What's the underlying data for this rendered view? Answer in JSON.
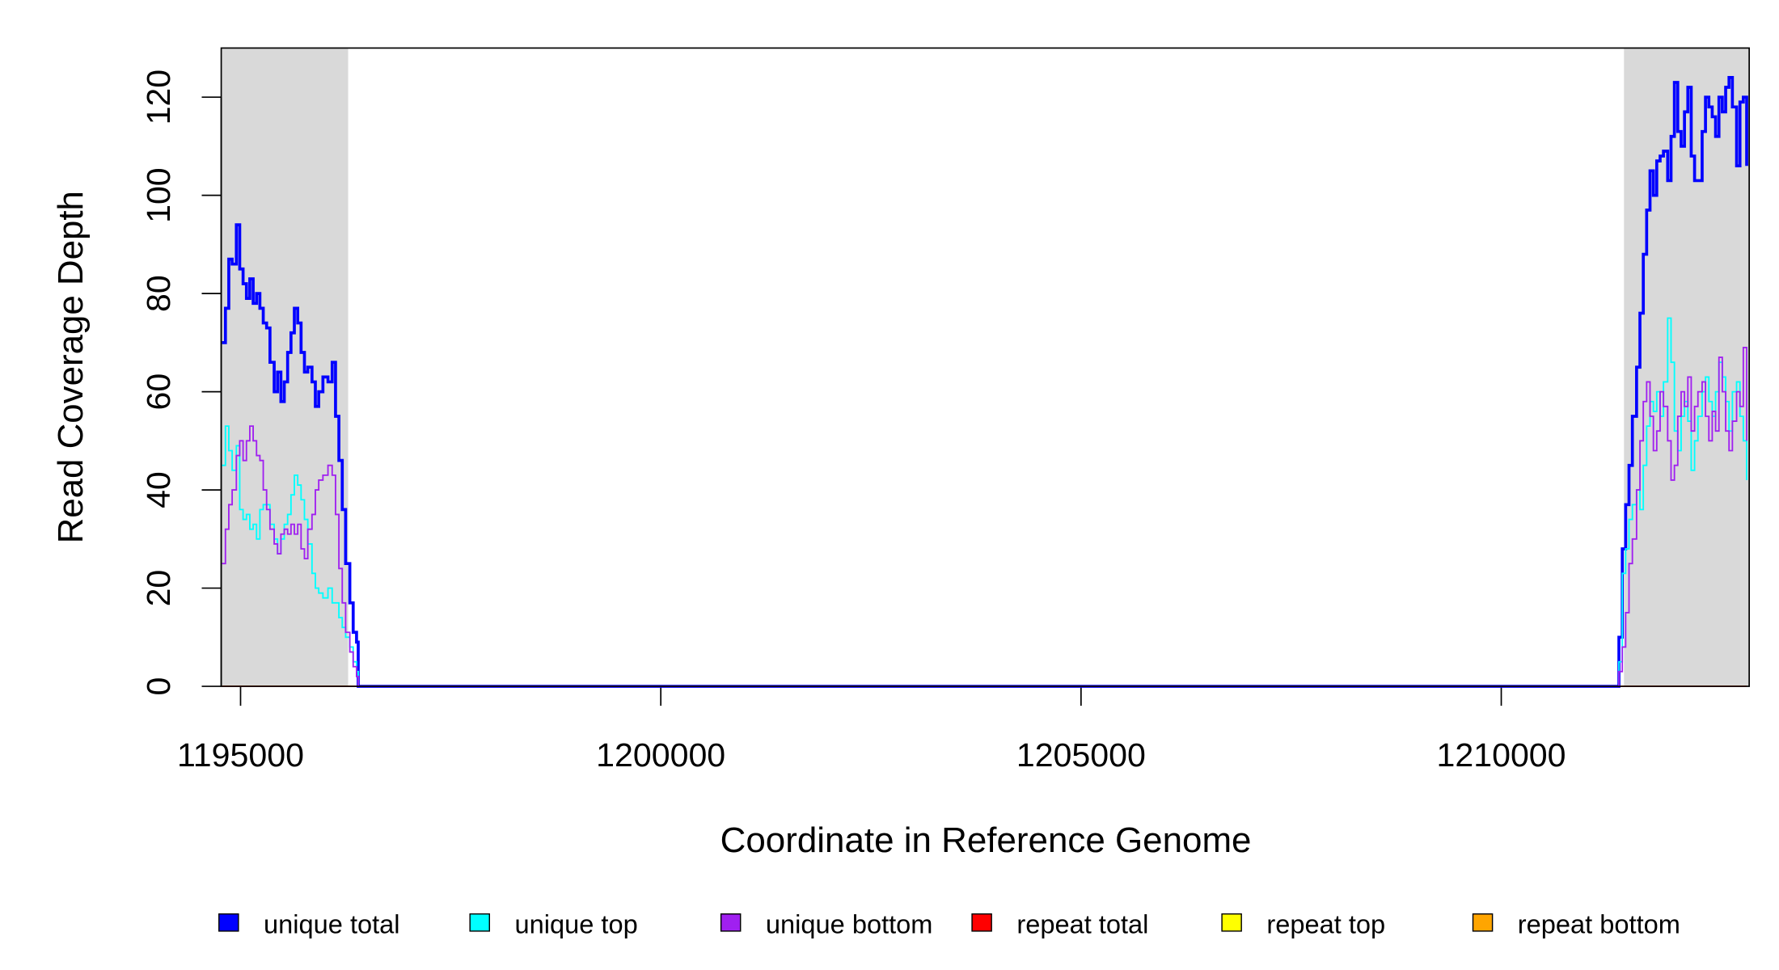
{
  "chart_data": {
    "type": "step",
    "x_label": "Coordinate in Reference Genome",
    "y_label": "Read Coverage Depth",
    "xlim": [
      1194770,
      1212950
    ],
    "ylim": [
      0,
      130
    ],
    "xticks": [
      1195000,
      1200000,
      1205000,
      1210000
    ],
    "yticks": [
      0,
      20,
      40,
      60,
      80,
      100,
      120
    ],
    "legend": "bottom",
    "shaded_regions": [
      [
        1194770,
        1196280
      ],
      [
        1211460,
        1212950
      ]
    ],
    "shade_color": "#d9d9d9",
    "x": [
      1194780,
      1194820,
      1194860,
      1194900,
      1194950,
      1194990,
      1195030,
      1195070,
      1195110,
      1195150,
      1195190,
      1195230,
      1195270,
      1195310,
      1195350,
      1195400,
      1195440,
      1195480,
      1195520,
      1195560,
      1195600,
      1195640,
      1195680,
      1195720,
      1195760,
      1195800,
      1195850,
      1195890,
      1195930,
      1195980,
      1196040,
      1196090,
      1196130,
      1196170,
      1196210,
      1196250,
      1196300,
      1196340,
      1196380,
      1196400,
      1211350,
      1211400,
      1211440,
      1211480,
      1211520,
      1211560,
      1211610,
      1211650,
      1211690,
      1211730,
      1211770,
      1211810,
      1211850,
      1211890,
      1211930,
      1211980,
      1212020,
      1212060,
      1212100,
      1212140,
      1212180,
      1212220,
      1212260,
      1212300,
      1212340,
      1212390,
      1212430,
      1212470,
      1212510,
      1212550,
      1212590,
      1212630,
      1212670,
      1212710,
      1212750,
      1212800,
      1212840,
      1212880,
      1212920
    ],
    "series": [
      {
        "name": "repeat bottom",
        "color": "#ffa500",
        "width": 1.2,
        "values": [
          0,
          0,
          0,
          0,
          0,
          0,
          0,
          0,
          0,
          0,
          0,
          0,
          0,
          0,
          0,
          0,
          0,
          0,
          0,
          0,
          0,
          0,
          0,
          0,
          0,
          0,
          0,
          0,
          0,
          0,
          0,
          0,
          0,
          0,
          0,
          0,
          0,
          0,
          0,
          0,
          0,
          0,
          0,
          0,
          0,
          0,
          0,
          0,
          0,
          0,
          0,
          0,
          0,
          0,
          0,
          0,
          0,
          0,
          0,
          0,
          0,
          0,
          0,
          0,
          0,
          0,
          0,
          0,
          0,
          0,
          0,
          0,
          0,
          0,
          0,
          0,
          0,
          0,
          0
        ]
      },
      {
        "name": "repeat top",
        "color": "#ffff00",
        "width": 1.2,
        "values": [
          0,
          0,
          0,
          0,
          0,
          0,
          0,
          0,
          0,
          0,
          0,
          0,
          0,
          0,
          0,
          0,
          0,
          0,
          0,
          0,
          0,
          0,
          0,
          0,
          0,
          0,
          0,
          0,
          0,
          0,
          0,
          0,
          0,
          0,
          0,
          0,
          0,
          0,
          0,
          0,
          0,
          0,
          0,
          0,
          0,
          0,
          0,
          0,
          0,
          0,
          0,
          0,
          0,
          0,
          0,
          0,
          0,
          0,
          0,
          0,
          0,
          0,
          0,
          0,
          0,
          0,
          0,
          0,
          0,
          0,
          0,
          0,
          0,
          0,
          0,
          0,
          0,
          0,
          0
        ]
      },
      {
        "name": "repeat total",
        "color": "#ff0000",
        "width": 1.2,
        "values": [
          0,
          0,
          0,
          0,
          0,
          0,
          0,
          0,
          0,
          0,
          0,
          0,
          0,
          0,
          0,
          0,
          0,
          0,
          0,
          0,
          0,
          0,
          0,
          0,
          0,
          0,
          0,
          0,
          0,
          0,
          0,
          0,
          0,
          0,
          0,
          0,
          0,
          0,
          0,
          0,
          0,
          0,
          0,
          0,
          0,
          0,
          0,
          0,
          0,
          0,
          0,
          0,
          0,
          0,
          0,
          0,
          0,
          0,
          0,
          0,
          0,
          0,
          0,
          0,
          0,
          0,
          0,
          0,
          0,
          0,
          0,
          0,
          0,
          0,
          0,
          0,
          0,
          0,
          0
        ]
      },
      {
        "name": "unique total",
        "color": "#0000ff",
        "width": 2.6,
        "values": [
          70,
          77,
          87,
          86,
          94,
          85,
          82,
          79,
          83,
          78,
          80,
          77,
          74,
          73,
          66,
          60,
          64,
          58,
          62,
          68,
          72,
          77,
          74,
          68,
          64,
          65,
          62,
          57,
          60,
          63,
          62,
          66,
          55,
          46,
          36,
          25,
          17,
          11,
          9,
          0,
          0,
          10,
          28,
          37,
          45,
          55,
          65,
          76,
          88,
          97,
          105,
          100,
          107,
          108,
          109,
          103,
          112,
          123,
          113,
          110,
          117,
          122,
          108,
          103,
          103,
          113,
          120,
          118,
          116,
          112,
          120,
          117,
          122,
          124,
          118,
          106,
          119,
          120,
          106
        ]
      },
      {
        "name": "unique top",
        "color": "#00ffff",
        "width": 1.3,
        "values": [
          45,
          53,
          48,
          44,
          49,
          36,
          34,
          35,
          32,
          33,
          30,
          36,
          37,
          37,
          33,
          30,
          27,
          30,
          33,
          35,
          39,
          43,
          41,
          38,
          34,
          29,
          23,
          20,
          19,
          18,
          20,
          17,
          17,
          14,
          12,
          10,
          8,
          5,
          3,
          0,
          0,
          5,
          23,
          28,
          34,
          37,
          40,
          36,
          45,
          53,
          58,
          56,
          60,
          55,
          62,
          75,
          66,
          52,
          48,
          55,
          58,
          54,
          44,
          50,
          55,
          60,
          63,
          58,
          55,
          60,
          66,
          63,
          58,
          52,
          60,
          62,
          55,
          50,
          42
        ]
      },
      {
        "name": "unique bottom",
        "color": "#a020f0",
        "width": 1.3,
        "values": [
          25,
          32,
          37,
          40,
          47,
          50,
          46,
          50,
          53,
          50,
          47,
          46,
          40,
          36,
          32,
          29,
          27,
          31,
          32,
          31,
          33,
          31,
          33,
          28,
          26,
          32,
          35,
          40,
          42,
          43,
          45,
          43,
          35,
          24,
          17,
          11,
          7,
          4,
          2,
          0,
          0,
          3,
          8,
          15,
          25,
          30,
          40,
          50,
          58,
          62,
          55,
          48,
          52,
          60,
          57,
          50,
          42,
          45,
          55,
          60,
          57,
          63,
          52,
          57,
          60,
          62,
          55,
          50,
          56,
          52,
          67,
          60,
          52,
          48,
          54,
          60,
          57,
          69,
          50
        ]
      }
    ],
    "legend_order": [
      3,
      4,
      5,
      2,
      1,
      0
    ]
  }
}
